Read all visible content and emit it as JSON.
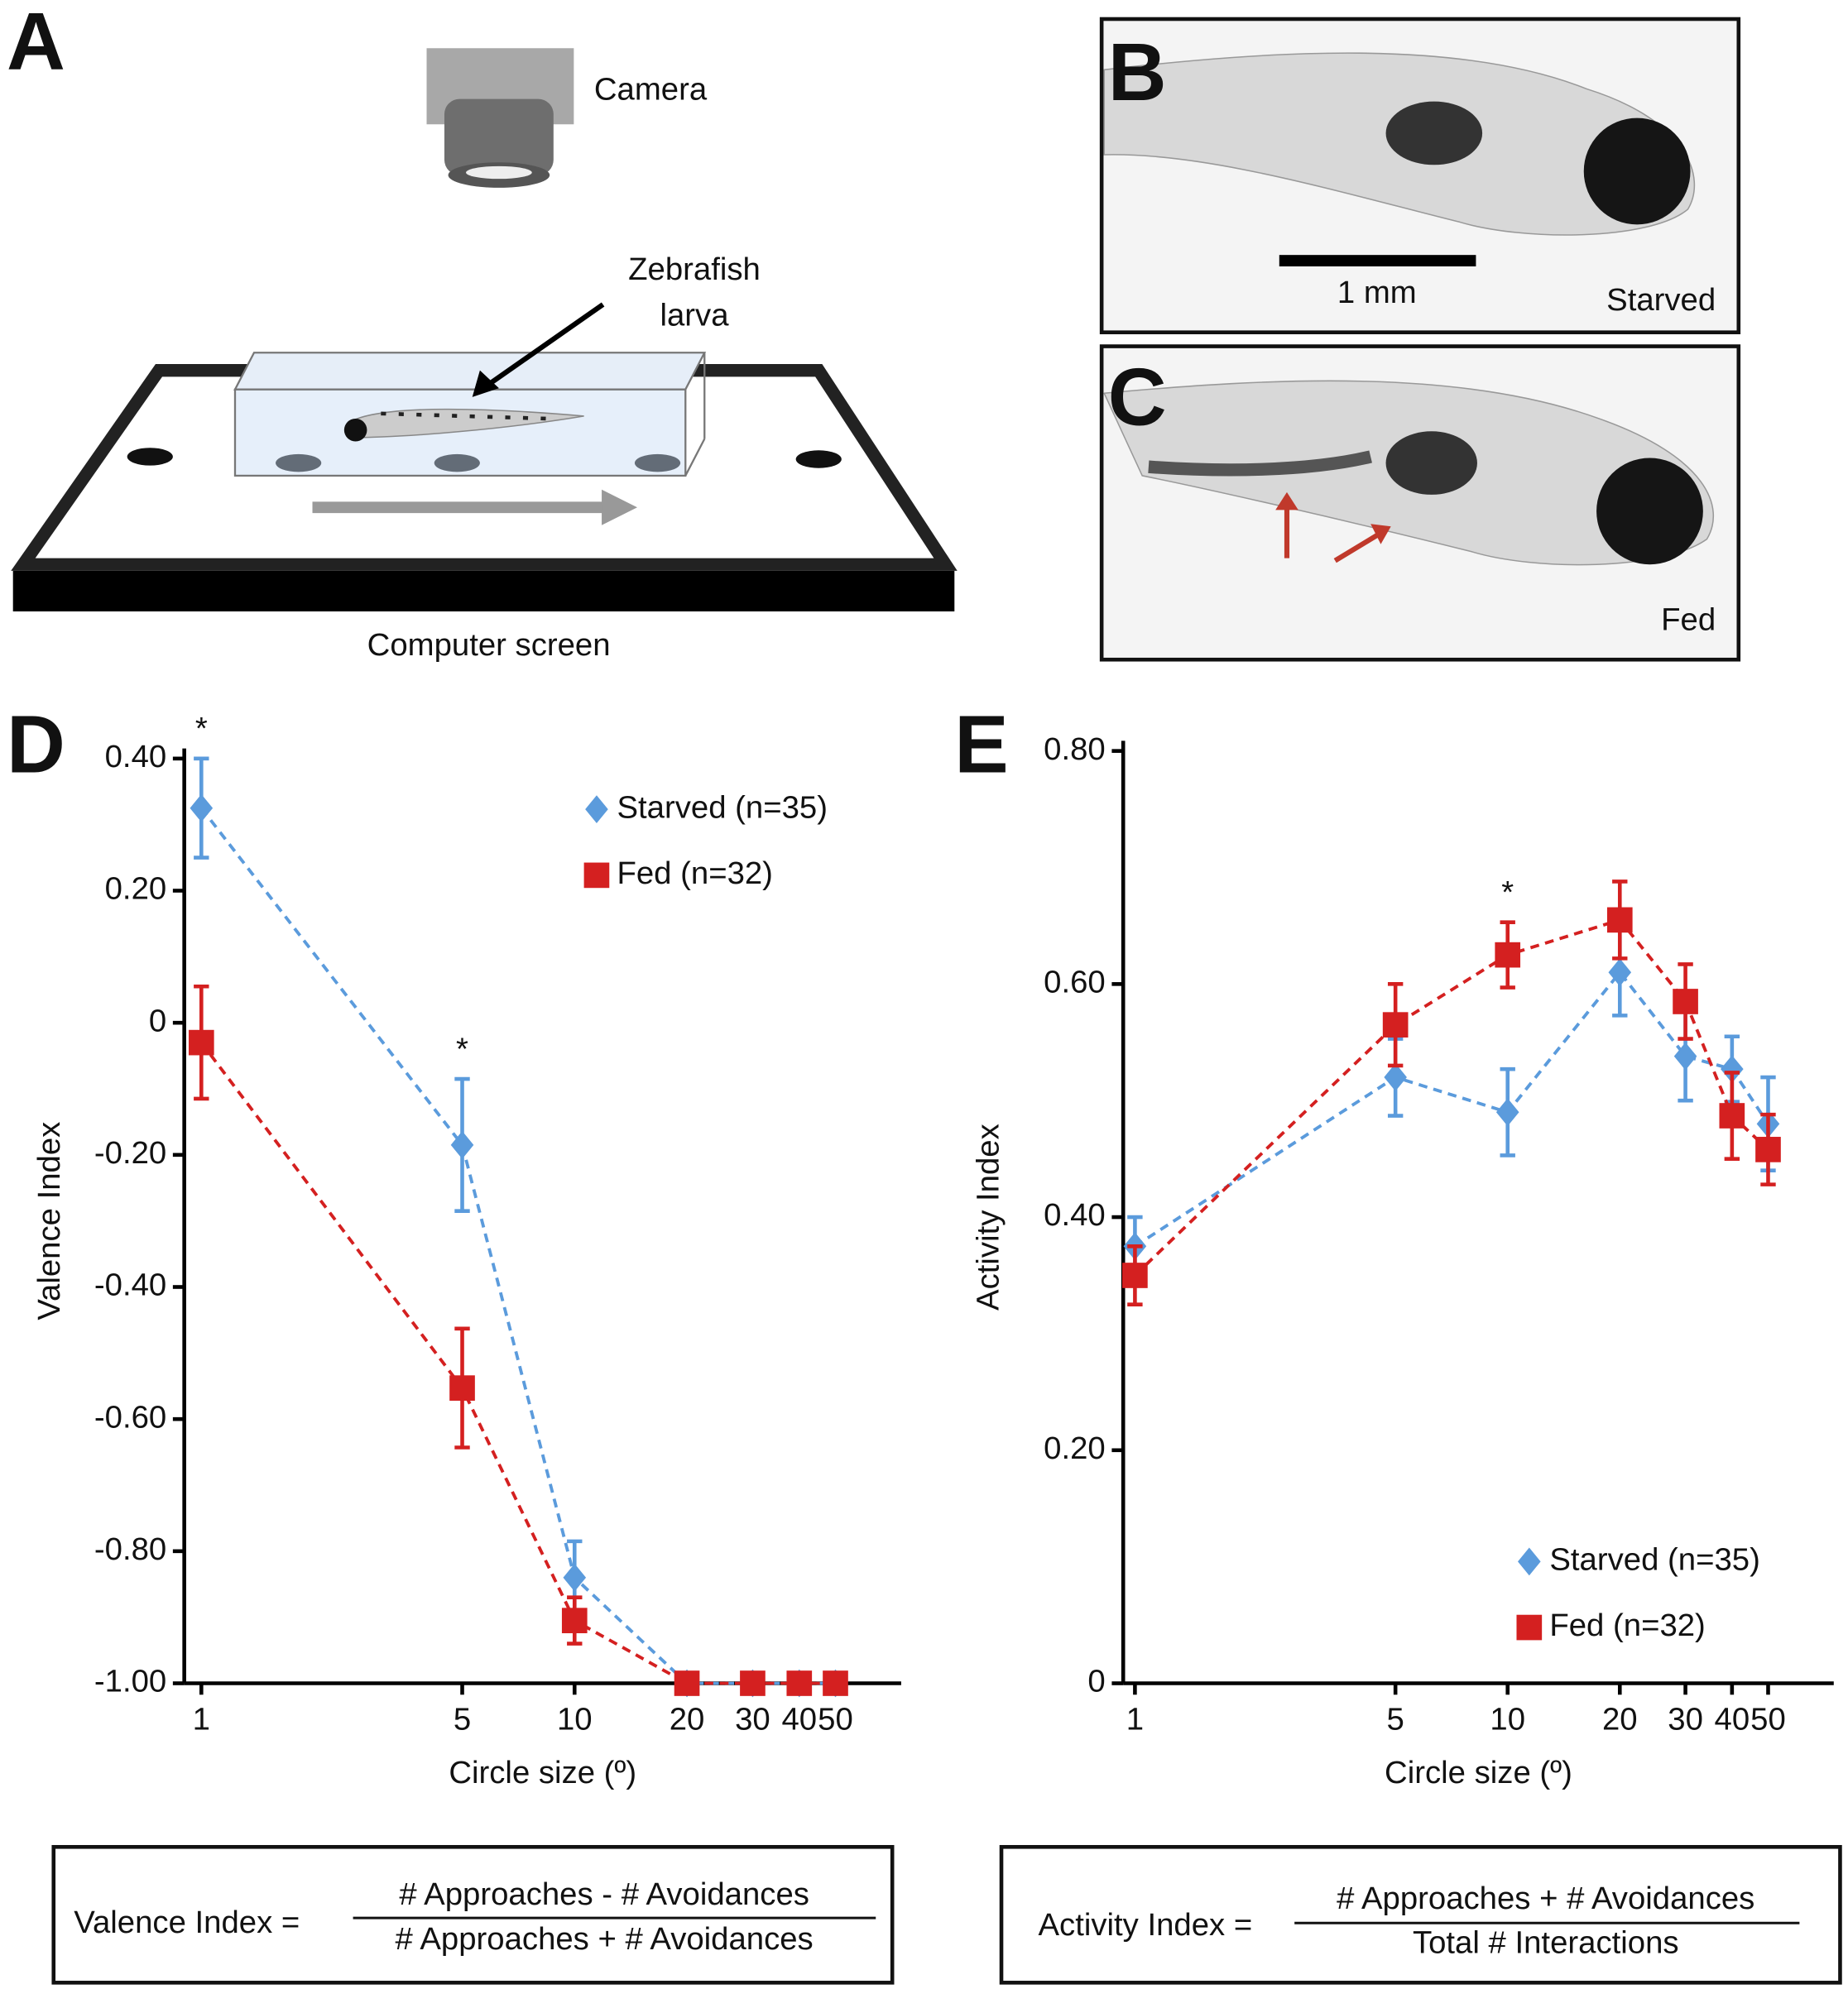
{
  "panel_labels": [
    "A",
    "B",
    "C",
    "D",
    "E"
  ],
  "diagram": {
    "camera": "Camera",
    "larva": [
      "Zebrafish",
      "larva"
    ],
    "screen": "Computer screen"
  },
  "photos": {
    "scale": "1 mm",
    "starved": "Starved",
    "fed": "Fed"
  },
  "chart_data": [
    {
      "type": "line",
      "xscale": "log",
      "x": [
        1,
        5,
        10,
        20,
        30,
        40,
        50
      ],
      "xlim": [
        0.9,
        75
      ],
      "xticks": [
        1,
        5,
        10,
        20,
        30,
        40,
        50
      ],
      "ylim": [
        -1,
        0.4
      ],
      "yticks": [
        {
          "value": 0.4,
          "label": "0.40"
        },
        {
          "value": 0.2,
          "label": "0.20"
        },
        0,
        {
          "value": -0.2,
          "label": "-0.20"
        },
        {
          "value": -0.4,
          "label": "-0.40"
        },
        {
          "value": -0.6,
          "label": "-0.60"
        },
        {
          "value": -0.8,
          "label": "-0.80"
        },
        {
          "value": -1,
          "label": "-1.00"
        }
      ],
      "xlabel": "Circle size (º)",
      "ylabel": "Valence Index",
      "legend": "upper right",
      "series": [
        {
          "name": "Starved (n=35)",
          "color": "#5b9bdc",
          "marker": "diamond",
          "values": [
            0.325,
            -0.185,
            -0.84,
            -1,
            -1,
            -1,
            -1
          ],
          "errors": [
            0.075,
            0.1,
            0.055,
            0,
            0,
            0,
            0
          ]
        },
        {
          "name": "Fed (n=32)",
          "color": "#d42020",
          "marker": "square",
          "values": [
            -0.03,
            -0.553,
            -0.905,
            -1,
            -1,
            -1,
            -1
          ],
          "errors": [
            0.085,
            0.09,
            0.035,
            0,
            0,
            0,
            0
          ]
        }
      ],
      "annotations": [
        {
          "text": "*",
          "x": 1
        },
        {
          "text": "*",
          "x": 5
        }
      ]
    },
    {
      "type": "line",
      "xscale": "log",
      "x": [
        1,
        5,
        10,
        20,
        30,
        40,
        50
      ],
      "xlim": [
        0.93,
        75
      ],
      "xticks": [
        1,
        5,
        10,
        20,
        30,
        40,
        50
      ],
      "ylim": [
        0,
        0.8
      ],
      "yticks": [
        0,
        {
          "value": 0.2,
          "label": "0.20"
        },
        {
          "value": 0.4,
          "label": "0.40"
        },
        {
          "value": 0.6,
          "label": "0.60"
        },
        {
          "value": 0.8,
          "label": "0.80"
        }
      ],
      "xlabel": "Circle size (º)",
      "ylabel": "Activity Index",
      "legend": "lower right",
      "series": [
        {
          "name": "Starved (n=35)",
          "color": "#5b9bdc",
          "marker": "diamond",
          "values": [
            0.375,
            0.52,
            0.49,
            0.61,
            0.538,
            0.527,
            0.48
          ],
          "errors": [
            0.025,
            0.033,
            0.037,
            0.037,
            0.038,
            0.028,
            0.04
          ]
        },
        {
          "name": "Fed (n=32)",
          "color": "#d42020",
          "marker": "square",
          "values": [
            0.35,
            0.565,
            0.625,
            0.655,
            0.585,
            0.487,
            0.458
          ],
          "errors": [
            0.025,
            0.035,
            0.028,
            0.033,
            0.032,
            0.037,
            0.03
          ]
        }
      ],
      "annotations": [
        {
          "text": "*",
          "x": 10
        }
      ]
    }
  ],
  "formulas": [
    {
      "lhs": "Valence Index =",
      "numerator": "# Approaches - # Avoidances",
      "denominator": "# Approaches + # Avoidances"
    },
    {
      "lhs": "Activity Index =",
      "numerator": "# Approaches + # Avoidances",
      "denominator": "Total # Interactions"
    }
  ]
}
